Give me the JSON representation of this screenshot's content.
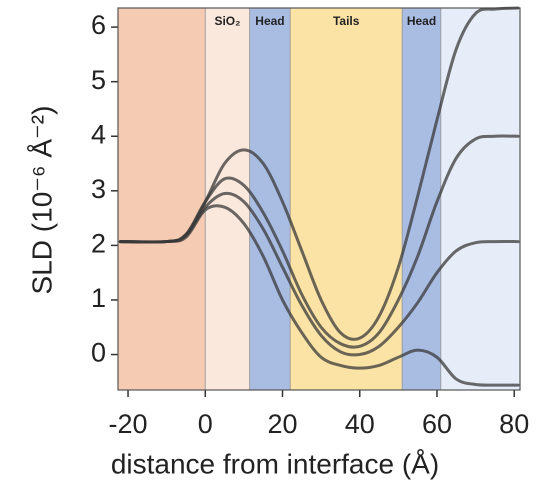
{
  "chart_data": {
    "type": "line",
    "xlabel": "distance from interface (Å)",
    "ylabel": "SLD (10⁻⁶ Å⁻²)",
    "xlim": [
      -22.6,
      81.5
    ],
    "ylim": [
      -0.65,
      6.35
    ],
    "xticks": [
      -20,
      0,
      20,
      40,
      60,
      80
    ],
    "yticks": [
      0,
      1,
      2,
      3,
      4,
      5,
      6
    ],
    "regions": [
      {
        "start": -22.6,
        "end": 0,
        "color": "#f5cbb3"
      },
      {
        "start": 0,
        "end": 11.5,
        "color": "#fbe8dc",
        "label": "SiO₂"
      },
      {
        "start": 11.5,
        "end": 22,
        "color": "#a9bde3",
        "label": "Head"
      },
      {
        "start": 22,
        "end": 51,
        "color": "#fbe3a6",
        "label": "Tails"
      },
      {
        "start": 51,
        "end": 61,
        "color": "#a9bde3",
        "label": "Head"
      },
      {
        "start": 61,
        "end": 81.5,
        "color": "#e6edf8"
      }
    ],
    "x": [
      -22,
      -10,
      -5,
      0,
      5,
      10,
      15,
      20,
      25,
      30,
      35,
      40,
      45,
      50,
      55,
      60,
      65,
      70,
      75,
      81
    ],
    "series": [
      {
        "color": "#3a3a3a",
        "values": [
          2.07,
          2.07,
          2.2,
          2.8,
          3.5,
          3.75,
          3.5,
          2.8,
          1.9,
          1.0,
          0.4,
          0.3,
          0.7,
          1.6,
          2.9,
          4.3,
          5.6,
          6.25,
          6.33,
          6.35
        ]
      },
      {
        "color": "#3a3a3a",
        "values": [
          2.07,
          2.07,
          2.2,
          2.8,
          3.22,
          3.1,
          2.6,
          1.9,
          1.1,
          0.5,
          0.2,
          0.15,
          0.4,
          1.0,
          1.8,
          2.8,
          3.6,
          3.95,
          4.0,
          4.0
        ]
      },
      {
        "color": "#3a3a3a",
        "values": [
          2.07,
          2.07,
          2.18,
          2.7,
          2.95,
          2.8,
          2.3,
          1.6,
          0.9,
          0.35,
          0.05,
          0.0,
          0.15,
          0.5,
          0.95,
          1.5,
          1.9,
          2.05,
          2.07,
          2.07
        ]
      },
      {
        "color": "#3a3a3a",
        "values": [
          2.07,
          2.07,
          2.15,
          2.65,
          2.7,
          2.4,
          1.8,
          1.0,
          0.4,
          -0.05,
          -0.2,
          -0.25,
          -0.2,
          -0.05,
          0.08,
          -0.05,
          -0.45,
          -0.55,
          -0.56,
          -0.56
        ]
      }
    ]
  }
}
